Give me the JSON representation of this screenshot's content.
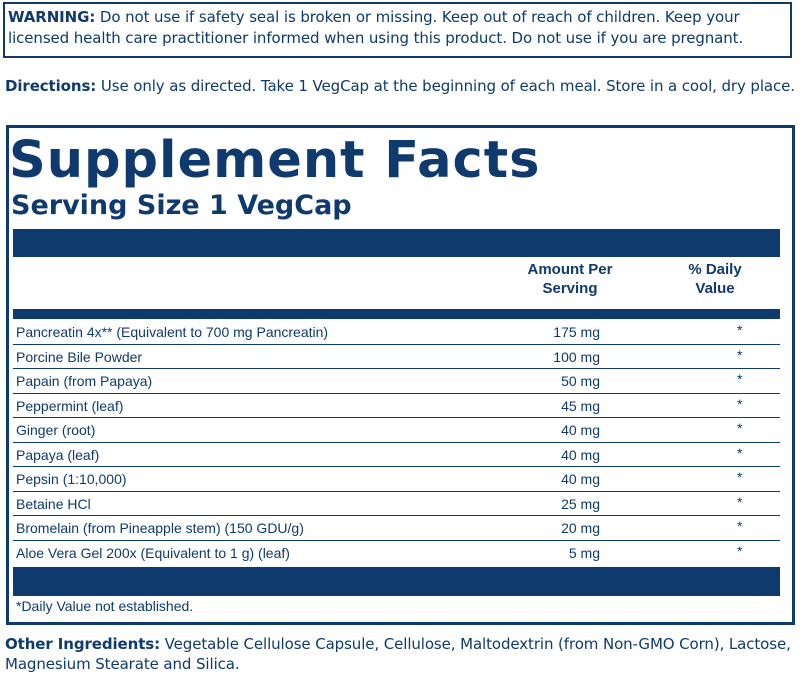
{
  "warning": {
    "label": "WARNING:",
    "text": " Do not use if safety seal is broken or missing. Keep out of reach of children. Keep your licensed health care practitioner informed when using this product. Do not use if you are pregnant."
  },
  "directions": {
    "label": "Directions:",
    "text": " Use only as directed. Take 1 VegCap at the beginning of each meal. Store in a cool, dry place."
  },
  "facts": {
    "title": "Supplement Facts",
    "serving_size": "Serving Size 1 VegCap",
    "col_amount_line1": "Amount Per",
    "col_amount_line2": "Serving",
    "col_dv_line1": "% Daily",
    "col_dv_line2": "Value",
    "rows": [
      {
        "name": "Pancreatin 4x** (Equivalent to 700 mg Pancreatin)",
        "amount": "175 mg",
        "dv": "*"
      },
      {
        "name": "Porcine Bile Powder",
        "amount": "100 mg",
        "dv": "*"
      },
      {
        "name": "Papain (from Papaya)",
        "amount": "50 mg",
        "dv": "*"
      },
      {
        "name": "Peppermint (leaf)",
        "amount": "45 mg",
        "dv": "*"
      },
      {
        "name": "Ginger (root)",
        "amount": "40 mg",
        "dv": "*"
      },
      {
        "name": "Papaya (leaf)",
        "amount": "40 mg",
        "dv": "*"
      },
      {
        "name": "Pepsin (1:10,000)",
        "amount": "40 mg",
        "dv": "*"
      },
      {
        "name": "Betaine HCl",
        "amount": "25 mg",
        "dv": "*"
      },
      {
        "name": "Bromelain (from Pineapple stem) (150 GDU/g)",
        "amount": "20 mg",
        "dv": "*"
      },
      {
        "name": "Aloe Vera Gel 200x (Equivalent to 1 g) (leaf)",
        "amount": "5 mg",
        "dv": "*"
      }
    ],
    "footnote": "*Daily Value not established."
  },
  "other_ingredients": {
    "label": "Other Ingredients:",
    "text": " Vegetable Cellulose Capsule, Cellulose, Maltodextrin (from Non-GMO Corn), Lactose, Magnesium Stearate and Silica."
  },
  "colors": {
    "navy": "#0f3a6e",
    "background": "#ffffff"
  }
}
